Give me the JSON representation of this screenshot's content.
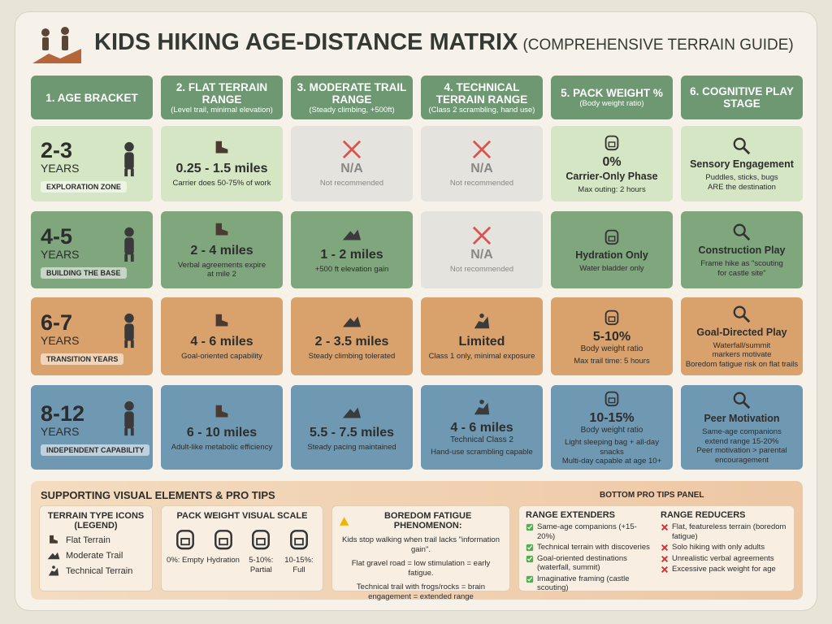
{
  "header": {
    "title": "KIDS HIKING AGE-DISTANCE MATRIX",
    "subtitle": "(COMPREHENSIVE TERRAIN GUIDE)"
  },
  "columns": [
    {
      "title": "1. AGE BRACKET"
    },
    {
      "title": "2. FLAT TERRAIN RANGE",
      "note": "(Level trail, minimal elevation)"
    },
    {
      "title": "3. MODERATE TRAIL RANGE",
      "note": "(Steady climbing, +500ft)"
    },
    {
      "title": "4. TECHNICAL TERRAIN RANGE",
      "note": "(Class 2 scrambling, hand use)"
    },
    {
      "title": "5. PACK WEIGHT %",
      "note": "(Body weight ratio)"
    },
    {
      "title": "6. COGNITIVE PLAY STAGE"
    }
  ],
  "rows": [
    {
      "age": "2-3",
      "unit": "YEARS",
      "zone": "EXPLORATION ZONE",
      "cells": [
        {
          "main": "0.25 - 1.5 miles",
          "lines": [
            "Carrier does 50-75% of work"
          ]
        },
        {
          "main": "N/A",
          "crossed": true,
          "lines": [
            "Not recommended"
          ]
        },
        {
          "main": "N/A",
          "crossed": true,
          "lines": [
            "Not recommended"
          ]
        },
        {
          "main": "0%",
          "label": "Carrier-Only Phase",
          "lines": [
            "Max outing: 2 hours"
          ]
        },
        {
          "label": "Sensory Engagement",
          "lines": [
            "Puddles, sticks, bugs",
            "ARE the destination"
          ]
        }
      ]
    },
    {
      "age": "4-5",
      "unit": "YEARS",
      "zone": "BUILDING THE BASE",
      "cells": [
        {
          "main": "2 - 4 miles",
          "lines": [
            "Verbal agreements expire",
            "at mile 2"
          ]
        },
        {
          "main": "1 - 2 miles",
          "lines": [
            "+500 ft elevation gain"
          ]
        },
        {
          "main": "N/A",
          "crossed": true,
          "lines": [
            "Not recommended"
          ]
        },
        {
          "label": "Hydration Only",
          "lines": [
            "Water bladder only"
          ]
        },
        {
          "label": "Construction Play",
          "lines": [
            "Frame hike as \"scouting",
            "for castle site\""
          ]
        }
      ]
    },
    {
      "age": "6-7",
      "unit": "YEARS",
      "zone": "TRANSITION YEARS",
      "cells": [
        {
          "main": "4 - 6 miles",
          "lines": [
            "Goal-oriented capability"
          ]
        },
        {
          "main": "2 - 3.5 miles",
          "lines": [
            "Steady climbing tolerated"
          ]
        },
        {
          "main": "Limited",
          "lines": [
            "Class 1 only, minimal exposure"
          ]
        },
        {
          "main": "5-10%",
          "sub": "Body weight ratio",
          "lines": [
            "Max trail time: 5 hours"
          ]
        },
        {
          "label": "Goal-Directed Play",
          "lines": [
            "Waterfall/summit",
            "markers motivate",
            "Boredom fatigue risk on flat trails"
          ]
        }
      ]
    },
    {
      "age": "8-12",
      "unit": "YEARS",
      "zone": "INDEPENDENT CAPABILITY",
      "cells": [
        {
          "main": "6 - 10 miles",
          "lines": [
            "Adult-like metabolic efficiency"
          ]
        },
        {
          "main": "5.5 - 7.5 miles",
          "lines": [
            "Steady pacing maintained"
          ]
        },
        {
          "main": "4 - 6 miles",
          "sub": "Technical Class 2",
          "lines": [
            "Hand-use scrambling capable"
          ]
        },
        {
          "main": "10-15%",
          "sub": "Body weight ratio",
          "lines": [
            "Light sleeping bag + all-day snacks",
            "Multi-day capable at age 10+"
          ]
        },
        {
          "label": "Peer Motivation",
          "lines": [
            "Same-age companions",
            "extend range 15-20%",
            "Peer motivation > parental",
            "encouragement"
          ]
        }
      ]
    }
  ],
  "tips": {
    "title": "SUPPORTING VISUAL ELEMENTS & PRO TIPS",
    "panel": "BOTTOM PRO TIPS PANEL",
    "legend": {
      "title": "TERRAIN TYPE ICONS",
      "subtitle": "(LEGEND)",
      "items": [
        "Flat Terrain",
        "Moderate Trail",
        "Technical Terrain"
      ]
    },
    "scale": {
      "title": "PACK WEIGHT VISUAL SCALE",
      "items": [
        "0%: Empty",
        "Hydration",
        "5-10%: Partial",
        "10-15%: Full"
      ]
    },
    "boredom": {
      "title": "BOREDOM FATIGUE PHENOMENON:",
      "paragraphs": [
        "Kids stop walking when trail lacks \"information gain\".",
        "Flat gravel road = low stimulation = early fatigue.",
        "Technical trail with frogs/rocks = brain engagement = extended range"
      ]
    },
    "extenders": {
      "title": "RANGE EXTENDERS",
      "items": [
        "Same-age companions (+15-20%)",
        "Technical terrain with discoveries",
        "Goal-oriented destinations (waterfall, summit)",
        "Imaginative framing (castle scouting)"
      ]
    },
    "reducers": {
      "title": "RANGE REDUCERS",
      "items": [
        "Flat, featureless terrain (boredom fatigue)",
        "Solo hiking with only adults",
        "Unrealistic verbal agreements",
        "Excessive pack weight for age"
      ]
    }
  }
}
